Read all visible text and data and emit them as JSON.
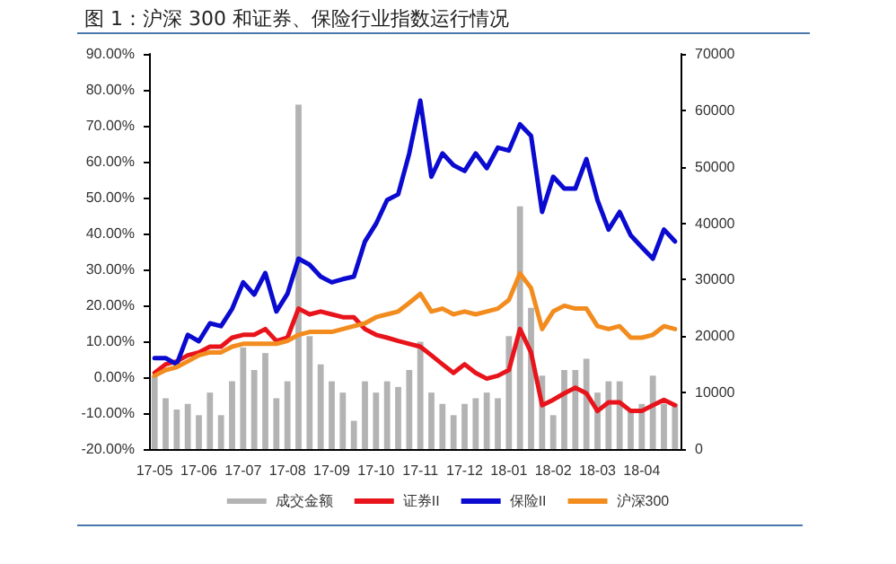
{
  "chart_data": {
    "type": "line",
    "title": "图 1：沪深 300 和证券、保险行业指数运行情况",
    "categories": [
      "17-05",
      null,
      null,
      null,
      "17-06",
      null,
      null,
      null,
      "17-07",
      null,
      null,
      null,
      "17-08",
      null,
      null,
      null,
      "17-09",
      null,
      null,
      null,
      "17-10",
      null,
      null,
      null,
      "17-11",
      null,
      null,
      null,
      "17-12",
      null,
      null,
      null,
      "18-01",
      null,
      null,
      null,
      "18-02",
      null,
      null,
      null,
      "18-03",
      null,
      null,
      null,
      "18-04",
      null,
      null,
      null
    ],
    "series": [
      {
        "name": "成交金额",
        "type": "bar",
        "axis": "y2",
        "color": "#b3b3b3",
        "values": [
          13000,
          9000,
          7000,
          8000,
          6000,
          10000,
          6000,
          12000,
          18000,
          14000,
          17000,
          9000,
          12000,
          61000,
          20000,
          15000,
          12000,
          10000,
          5000,
          12000,
          10000,
          12000,
          11000,
          14000,
          19000,
          10000,
          8000,
          6000,
          8000,
          9000,
          10000,
          9000,
          20000,
          43000,
          25000,
          13000,
          6000,
          14000,
          14000,
          16000,
          10000,
          12000,
          12000,
          7000,
          8000,
          13000,
          8000,
          8000
        ]
      },
      {
        "name": "证券II",
        "color": "#e8141c",
        "values": [
          1.2,
          3.6,
          4.4,
          6.1,
          6.9,
          8.5,
          8.5,
          11,
          11.8,
          11.8,
          13.4,
          10.1,
          11,
          19.1,
          17.5,
          18.3,
          17.5,
          16.7,
          16.7,
          13.4,
          11.8,
          11,
          10.1,
          9.3,
          8.5,
          6.1,
          3.6,
          1.2,
          3.6,
          1.2,
          -0.4,
          0.4,
          2,
          13.4,
          6.9,
          -7.8,
          -6.3,
          -4.5,
          -2.9,
          -4.5,
          -9.4,
          -7,
          -7,
          -9.4,
          -9.4,
          -7.8,
          -6.3,
          -7.8
        ]
      },
      {
        "name": "保险II",
        "color": "#0a0ad0",
        "values": [
          5.3,
          5.3,
          3.6,
          11.8,
          10,
          15,
          14.2,
          19,
          26.4,
          23,
          29,
          18.3,
          23.2,
          33,
          31.3,
          28,
          26.4,
          27.3,
          28,
          37.8,
          42.7,
          49.3,
          50.9,
          62.3,
          77,
          55.8,
          62.3,
          59,
          57.4,
          62.3,
          58.2,
          63.9,
          63.1,
          70.4,
          67.2,
          46,
          55.8,
          52.5,
          52.5,
          60.7,
          49.3,
          41.1,
          46,
          39.5,
          36.2,
          33,
          41.1,
          37.8
        ]
      },
      {
        "name": "沪深300",
        "color": "#f28c1e",
        "values": [
          0.4,
          2,
          2.8,
          4.4,
          6.1,
          6.9,
          6.9,
          8.5,
          9.3,
          9.3,
          9.3,
          9.3,
          10.1,
          11.8,
          12.6,
          12.6,
          12.6,
          13.4,
          14.2,
          15,
          16.7,
          17.5,
          18.3,
          20.7,
          23.2,
          18.3,
          19.1,
          17.5,
          18.3,
          17.5,
          18.3,
          19.1,
          21.5,
          28.9,
          24.8,
          13.4,
          18.3,
          19.9,
          19.1,
          19.1,
          14.2,
          13.4,
          14.2,
          11,
          11,
          11.8,
          14.2,
          13.4
        ]
      }
    ],
    "ylim": [
      -20,
      90
    ],
    "yticks": [
      {
        "value": -20,
        "label": "-20.00%"
      },
      {
        "value": -10,
        "label": "-10.00%"
      },
      {
        "value": 0,
        "label": "0.00%"
      },
      {
        "value": 10,
        "label": "10.00%"
      },
      {
        "value": 20,
        "label": "20.00%"
      },
      {
        "value": 30,
        "label": "30.00%"
      },
      {
        "value": 40,
        "label": "40.00%"
      },
      {
        "value": 50,
        "label": "50.00%"
      },
      {
        "value": 60,
        "label": "60.00%"
      },
      {
        "value": 70,
        "label": "70.00%"
      },
      {
        "value": 80,
        "label": "80.00%"
      },
      {
        "value": 90,
        "label": "90.00%"
      }
    ],
    "y2lim": [
      0,
      70000
    ],
    "y2ticks": [
      0,
      10000,
      20000,
      30000,
      40000,
      50000,
      60000,
      70000
    ],
    "grid": false,
    "legend": "bottom",
    "marker": "none",
    "line_style": "solid"
  }
}
